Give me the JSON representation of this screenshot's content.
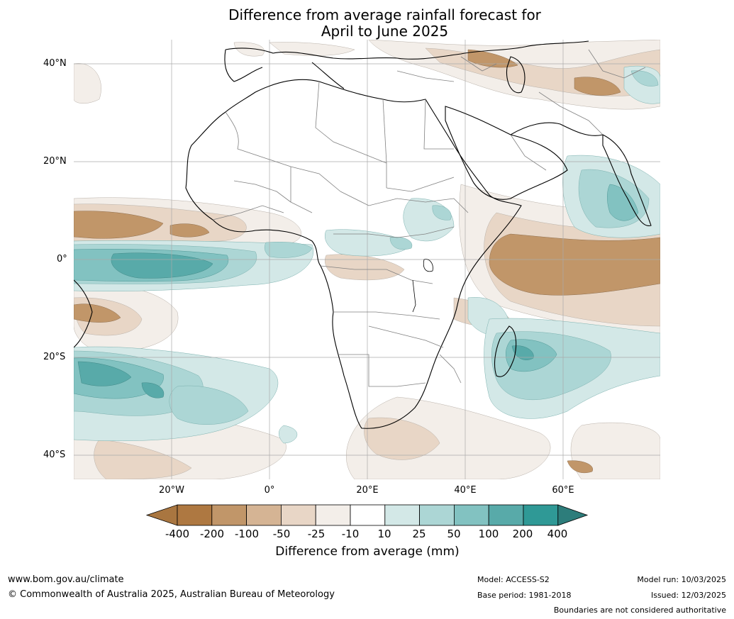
{
  "title": {
    "line1": "Difference from average rainfall forecast for",
    "line2": "April to June 2025"
  },
  "latitude_labels": [
    "40°N",
    "20°N",
    "0°",
    "20°S",
    "40°S"
  ],
  "longitude_labels": [
    "20°W",
    "0°",
    "20°E",
    "40°E",
    "60°E"
  ],
  "colorbar": {
    "title": "Difference from average (mm)",
    "tick_labels": [
      "-400",
      "-200",
      "-100",
      "-50",
      "-25",
      "-10",
      "10",
      "25",
      "50",
      "100",
      "200",
      "400"
    ],
    "colors": [
      "#a97640",
      "#ae7841",
      "#c19669",
      "#d5b494",
      "#e8d6c6",
      "#f3eee9",
      "#ffffff",
      "#d3e8e7",
      "#acd6d5",
      "#82c2c1",
      "#58aaa9",
      "#2f9996",
      "#2d7d7b"
    ]
  },
  "footer": {
    "website": "www.bom.gov.au/climate",
    "copyright": "© Commonwealth of Australia 2025, Australian Bureau of Meteorology",
    "model": "Model: ACCESS-S2",
    "base_period": "Base period: 1981-2018",
    "model_run": "Model run: 10/03/2025",
    "issued": "Issued: 12/03/2025",
    "disclaimer": "Boundaries are not considered authoritative"
  }
}
